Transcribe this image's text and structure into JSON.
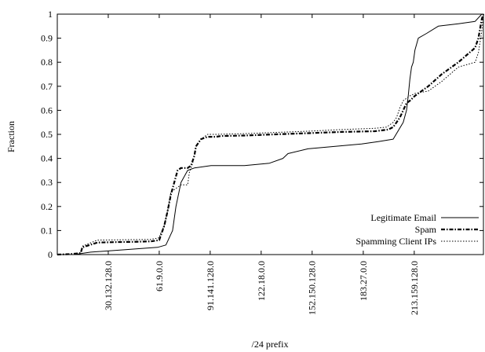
{
  "chart_data": {
    "type": "line",
    "title": "",
    "xlabel": "/24 prefix",
    "ylabel": "Fraction",
    "xlim": [
      0,
      255
    ],
    "ylim": [
      0,
      1
    ],
    "grid": false,
    "legend_position": "bottom-right",
    "x_ticks": [
      {
        "value": 30.5,
        "label": "30.132.128.0"
      },
      {
        "value": 61.0,
        "label": "61.9.0.0"
      },
      {
        "value": 91.5,
        "label": "91.141.128.0"
      },
      {
        "value": 122.0,
        "label": "122.18.0.0"
      },
      {
        "value": 152.5,
        "label": "152.150.128.0"
      },
      {
        "value": 183.1,
        "label": "183.27.0.0"
      },
      {
        "value": 213.6,
        "label": "213.159.128.0"
      }
    ],
    "y_ticks": [
      {
        "value": 0,
        "label": "0"
      },
      {
        "value": 0.1,
        "label": "0.1"
      },
      {
        "value": 0.2,
        "label": "0.2"
      },
      {
        "value": 0.3,
        "label": "0.3"
      },
      {
        "value": 0.4,
        "label": "0.4"
      },
      {
        "value": 0.5,
        "label": "0.5"
      },
      {
        "value": 0.6,
        "label": "0.6"
      },
      {
        "value": 0.7,
        "label": "0.7"
      },
      {
        "value": 0.8,
        "label": "0.8"
      },
      {
        "value": 0.9,
        "label": "0.9"
      },
      {
        "value": 1,
        "label": "1"
      }
    ],
    "series": [
      {
        "name": "Legitimate Email",
        "style": "solid",
        "color": "#000000",
        "x": [
          0,
          10,
          20,
          40,
          60,
          65,
          69,
          71,
          74,
          78,
          82,
          92,
          112,
          127,
          135,
          138,
          150,
          182,
          192,
          201,
          207,
          209,
          210,
          211,
          212,
          213,
          214,
          216,
          221,
          228,
          240,
          250,
          254,
          255
        ],
        "y": [
          0,
          0,
          0.01,
          0.02,
          0.03,
          0.04,
          0.1,
          0.2,
          0.3,
          0.35,
          0.36,
          0.37,
          0.37,
          0.38,
          0.4,
          0.42,
          0.44,
          0.46,
          0.47,
          0.48,
          0.55,
          0.6,
          0.66,
          0.73,
          0.78,
          0.8,
          0.85,
          0.9,
          0.92,
          0.95,
          0.96,
          0.97,
          1.0,
          1.0
        ]
      },
      {
        "name": "Spam",
        "style": "dash-dot",
        "color": "#000000",
        "x": [
          0,
          8,
          14,
          15,
          24,
          35,
          45,
          56,
          61,
          62,
          64,
          66,
          68,
          72,
          74,
          78,
          80,
          82,
          83,
          86,
          90,
          93,
          95,
          98,
          112,
          130,
          150,
          170,
          190,
          198,
          201,
          203,
          205,
          207,
          209,
          211,
          214,
          222,
          230,
          240,
          250,
          252,
          254,
          255
        ],
        "y": [
          0,
          0.002,
          0.006,
          0.03,
          0.05,
          0.052,
          0.053,
          0.055,
          0.06,
          0.08,
          0.12,
          0.18,
          0.25,
          0.35,
          0.36,
          0.36,
          0.37,
          0.41,
          0.45,
          0.48,
          0.49,
          0.49,
          0.49,
          0.493,
          0.495,
          0.5,
          0.505,
          0.51,
          0.513,
          0.52,
          0.53,
          0.55,
          0.57,
          0.6,
          0.63,
          0.64,
          0.66,
          0.7,
          0.75,
          0.8,
          0.86,
          0.9,
          0.98,
          1.0
        ]
      },
      {
        "name": "Spamming Client IPs",
        "style": "dotted",
        "color": "#000000",
        "x": [
          0,
          8,
          14,
          15,
          24,
          35,
          45,
          56,
          61,
          62,
          64,
          66,
          68,
          72,
          74,
          76,
          78,
          79,
          81,
          82,
          83,
          86,
          90,
          95,
          112,
          130,
          150,
          170,
          190,
          197,
          201,
          203,
          205,
          207,
          209,
          211,
          214,
          222,
          230,
          240,
          250,
          252,
          254,
          255
        ],
        "y": [
          0,
          0.003,
          0.008,
          0.035,
          0.06,
          0.061,
          0.062,
          0.063,
          0.07,
          0.09,
          0.12,
          0.18,
          0.26,
          0.28,
          0.29,
          0.29,
          0.29,
          0.34,
          0.38,
          0.41,
          0.45,
          0.48,
          0.5,
          0.5,
          0.503,
          0.508,
          0.513,
          0.52,
          0.525,
          0.53,
          0.55,
          0.57,
          0.61,
          0.64,
          0.65,
          0.66,
          0.67,
          0.68,
          0.72,
          0.78,
          0.8,
          0.84,
          0.93,
          1.0
        ]
      }
    ]
  }
}
